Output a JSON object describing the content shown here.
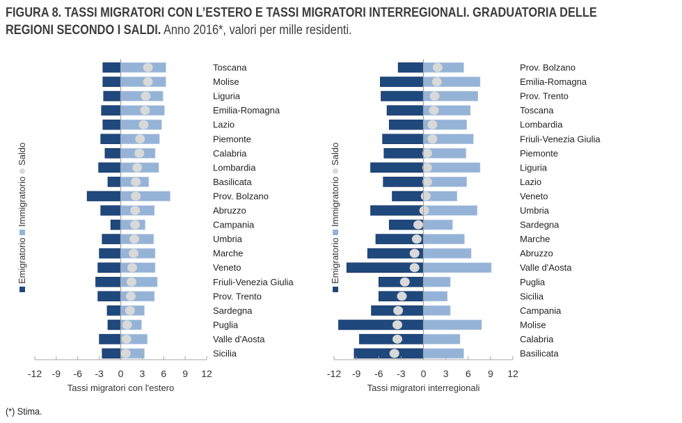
{
  "title": {
    "bold": "FIGURA 8. TASSI MIGRATORI CON L’ESTERO E TASSI MIGRATORI INTERREGIONALI. GRADUATORIA DELLE",
    "bold_line2": "REGIONI SECONDO I SALDI.",
    "normal_line2": " Anno 2016*, valori per mille residenti."
  },
  "footnote": "(*) Stima.",
  "colors": {
    "emigratorio": "#1f497d",
    "immigratorio": "#95b3d7",
    "saldo": "#d9d9d9",
    "axis": "#a6a6a6"
  },
  "chart_data": [
    {
      "type": "bar",
      "subtype": "diverging-horizontal-bar-with-dot",
      "xlabel": "Tassi migratori con l'estero",
      "xlim": [
        -12,
        12
      ],
      "xticks": [
        -12,
        -9,
        -6,
        -3,
        0,
        3,
        6,
        9,
        12
      ],
      "legend": {
        "placement": "left-vertical",
        "entries": [
          "Emigratorio",
          "Immigratorio",
          "Saldo"
        ]
      },
      "categories": [
        "Toscana",
        "Molise",
        "Liguria",
        "Emilia-Romagna",
        "Lazio",
        "Piemonte",
        "Calabria",
        "Lombardia",
        "Basilicata",
        "Prov. Bolzano",
        "Abruzzo",
        "Campania",
        "Umbria",
        "Marche",
        "Veneto",
        "Friuli-Venezia Giulia",
        "Prov. Trento",
        "Sardegna",
        "Puglia",
        "Valle d'Aosta",
        "Sicilia"
      ],
      "series": [
        {
          "name": "Emigratorio",
          "values": [
            -2.5,
            -2.5,
            -2.4,
            -2.7,
            -2.5,
            -2.8,
            -2.2,
            -3.1,
            -1.8,
            -4.7,
            -2.8,
            -1.4,
            -2.6,
            -3.0,
            -3.2,
            -3.5,
            -3.2,
            -1.9,
            -1.8,
            -3.0,
            -2.6
          ]
        },
        {
          "name": "Immigratorio",
          "values": [
            6.3,
            6.3,
            5.9,
            6.1,
            5.7,
            5.4,
            4.8,
            5.3,
            3.9,
            6.9,
            4.7,
            3.4,
            4.6,
            4.8,
            4.8,
            5.1,
            4.7,
            3.3,
            2.9,
            3.7,
            3.3
          ]
        },
        {
          "name": "Saldo",
          "values": [
            3.8,
            3.8,
            3.5,
            3.4,
            3.2,
            2.7,
            2.6,
            2.3,
            2.1,
            2.1,
            2.0,
            2.0,
            1.9,
            1.8,
            1.6,
            1.5,
            1.4,
            1.3,
            0.9,
            0.8,
            0.7
          ]
        }
      ]
    },
    {
      "type": "bar",
      "subtype": "diverging-horizontal-bar-with-dot",
      "xlabel": "Tassi migratori interregionali",
      "xlim": [
        -12,
        12
      ],
      "xticks": [
        -12,
        -9,
        -6,
        -3,
        0,
        3,
        6,
        9,
        12
      ],
      "legend": {
        "placement": "left-vertical",
        "entries": [
          "Emigratorio",
          "Immigratorio",
          "Saldo"
        ]
      },
      "categories": [
        "Prov. Bolzano",
        "Emilia-Romagna",
        "Prov. Trento",
        "Toscana",
        "Lombardia",
        "Friuli-Venezia Giulia",
        "Piemonte",
        "Liguria",
        "Lazio",
        "Veneto",
        "Umbria",
        "Sardegna",
        "Marche",
        "Abruzzo",
        "Valle d'Aosta",
        "Puglia",
        "Sicilia",
        "Campania",
        "Molise",
        "Calabria",
        "Basilicata"
      ],
      "series": [
        {
          "name": "Emigratorio",
          "values": [
            -3.4,
            -5.8,
            -5.7,
            -4.9,
            -4.6,
            -5.5,
            -5.3,
            -7.1,
            -5.4,
            -4.2,
            -7.1,
            -4.6,
            -6.4,
            -7.5,
            -10.3,
            -6.0,
            -6.0,
            -7.0,
            -11.4,
            -8.6,
            -9.3
          ]
        },
        {
          "name": "Immigratorio",
          "values": [
            5.4,
            7.6,
            7.3,
            6.3,
            5.8,
            6.7,
            5.7,
            7.6,
            5.8,
            4.5,
            7.2,
            3.9,
            5.5,
            6.4,
            9.1,
            3.6,
            3.2,
            3.6,
            7.8,
            4.9,
            5.4
          ]
        },
        {
          "name": "Saldo",
          "values": [
            1.9,
            1.8,
            1.5,
            1.4,
            1.2,
            1.2,
            0.5,
            0.5,
            0.5,
            0.3,
            0.1,
            -0.7,
            -0.9,
            -1.2,
            -1.2,
            -2.5,
            -2.9,
            -3.4,
            -3.5,
            -3.5,
            -3.9
          ]
        }
      ]
    }
  ]
}
